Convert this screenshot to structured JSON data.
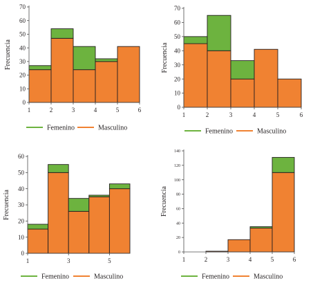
{
  "colors": {
    "femenino": "#6db33f",
    "masculino": "#f08232",
    "edge": "#231f20",
    "axis": "#4d4d4d"
  },
  "chart_data": [
    {
      "type": "bar",
      "stacked": true,
      "ylabel": "Frecuencia",
      "ylim": [
        0,
        70
      ],
      "yticks": [
        0,
        10,
        20,
        30,
        40,
        50,
        60,
        70
      ],
      "xlim": [
        1,
        6
      ],
      "xticks": [
        1,
        2,
        3,
        4,
        5,
        6
      ],
      "categories": [
        "1–2",
        "2–3",
        "3–4",
        "4–5",
        "5–6"
      ],
      "series": [
        {
          "name": "Masculino",
          "values": [
            24,
            47,
            24,
            30,
            41
          ]
        },
        {
          "name": "Femenino",
          "values": [
            3,
            7,
            17,
            2,
            0
          ]
        }
      ],
      "legend": "bottom"
    },
    {
      "type": "bar",
      "stacked": true,
      "ylabel": "Frecuencia",
      "ylim": [
        0,
        70
      ],
      "yticks": [
        0,
        10,
        20,
        30,
        40,
        50,
        60,
        70
      ],
      "xlim": [
        1,
        6
      ],
      "xticks": [
        1,
        2,
        3,
        4,
        5,
        6
      ],
      "categories": [
        "1–2",
        "2–3",
        "3–4",
        "4–5",
        "5–6"
      ],
      "series": [
        {
          "name": "Masculino",
          "values": [
            45,
            40,
            20,
            41,
            20
          ]
        },
        {
          "name": "Femenino",
          "values": [
            5,
            25,
            13,
            0,
            0
          ]
        }
      ],
      "legend": "bottom"
    },
    {
      "type": "bar",
      "stacked": true,
      "ylabel": "Frecuencia",
      "ylim": [
        0,
        60
      ],
      "yticks": [
        0,
        10,
        20,
        30,
        40,
        50,
        60
      ],
      "xlim": [
        1,
        6
      ],
      "xticks": [
        1,
        3,
        5
      ],
      "categories": [
        "1–2",
        "2–3",
        "3–4",
        "4–5",
        "5–6"
      ],
      "series": [
        {
          "name": "Masculino",
          "values": [
            15,
            50,
            26,
            35,
            40
          ]
        },
        {
          "name": "Femenino",
          "values": [
            3,
            5,
            8,
            1,
            3
          ]
        }
      ],
      "legend": "bottom"
    },
    {
      "type": "bar",
      "stacked": true,
      "ylabel": "Frecuencia",
      "ylim": [
        0,
        140
      ],
      "yticks": [
        0,
        20,
        40,
        60,
        80,
        100,
        120,
        140
      ],
      "xlim": [
        1,
        6
      ],
      "xticks": [
        1,
        2,
        3,
        4,
        5,
        6
      ],
      "categories": [
        "1–2",
        "2–3",
        "3–4",
        "4–5",
        "5–6"
      ],
      "series": [
        {
          "name": "Masculino",
          "values": [
            0,
            1,
            17,
            33,
            110
          ]
        },
        {
          "name": "Femenino",
          "values": [
            0,
            0,
            0,
            2,
            21
          ]
        }
      ],
      "legend": "bottom"
    }
  ]
}
